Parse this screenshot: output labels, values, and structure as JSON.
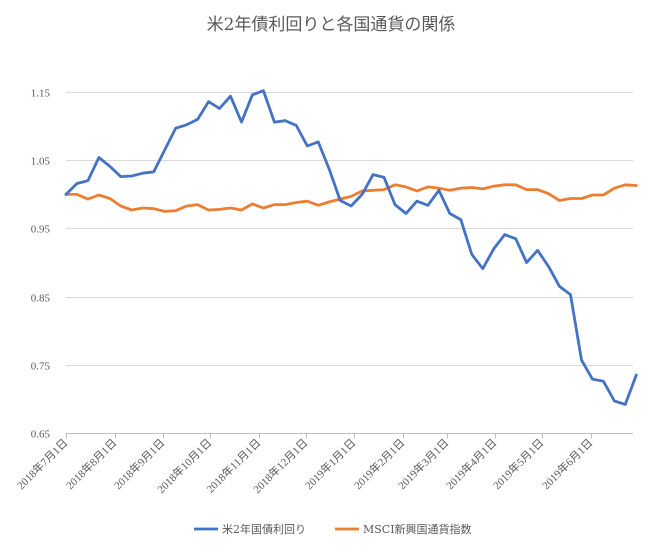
{
  "chart_data": {
    "type": "line",
    "title": "米2年債利回りと各国通貨の関係",
    "y_ticks": [
      "1.15",
      "1.05",
      "0.95",
      "0.85",
      "0.75",
      "0.65"
    ],
    "y_tick_values": [
      1.15,
      1.05,
      0.95,
      0.85,
      0.75,
      0.65
    ],
    "ylim": [
      0.65,
      1.2
    ],
    "x_tick_labels": [
      "2018年7月1日",
      "2018年8月1日",
      "2018年9月1日",
      "2018年10月1日",
      "2018年11月1日",
      "2018年12月1日",
      "2019年1月1日",
      "2019年2月1日",
      "2019年3月1日",
      "2019年4月1日",
      "2019年5月1日",
      "2019年6月1日"
    ],
    "x_tick_positions": [
      0,
      4.43,
      8.86,
      13.14,
      17.57,
      21.86,
      26.29,
      30.71,
      34.71,
      39.14,
      43.43,
      47.86
    ],
    "x_range": [
      0,
      51.7
    ],
    "grid": "horizontal",
    "legend_position": "bottom",
    "series": [
      {
        "name": "米2年国債利回り",
        "color": "#4472c4",
        "values": [
          1.0,
          1.016,
          1.02,
          1.054,
          1.041,
          1.026,
          1.027,
          1.031,
          1.033,
          1.065,
          1.097,
          1.102,
          1.11,
          1.136,
          1.126,
          1.144,
          1.106,
          1.146,
          1.152,
          1.106,
          1.108,
          1.101,
          1.071,
          1.077,
          1.037,
          0.991,
          0.983,
          1.0,
          1.029,
          1.025,
          0.985,
          0.972,
          0.99,
          0.984,
          1.006,
          0.972,
          0.963,
          0.912,
          0.891,
          0.92,
          0.941,
          0.935,
          0.9,
          0.918,
          0.894,
          0.865,
          0.853,
          0.757,
          0.729,
          0.726,
          0.697,
          0.692,
          0.735
        ]
      },
      {
        "name": "MSCI新興国通貨指数",
        "color": "#ed7d31",
        "values": [
          1.0,
          1.0,
          0.993,
          0.999,
          0.994,
          0.983,
          0.977,
          0.98,
          0.979,
          0.975,
          0.976,
          0.983,
          0.985,
          0.977,
          0.978,
          0.98,
          0.977,
          0.986,
          0.98,
          0.985,
          0.985,
          0.988,
          0.99,
          0.984,
          0.989,
          0.993,
          0.997,
          1.005,
          1.006,
          1.007,
          1.014,
          1.011,
          1.005,
          1.011,
          1.009,
          1.006,
          1.009,
          1.01,
          1.008,
          1.012,
          1.014,
          1.014,
          1.007,
          1.007,
          1.001,
          0.991,
          0.994,
          0.994,
          0.999,
          0.999,
          1.009,
          1.014,
          1.013
        ]
      }
    ]
  }
}
